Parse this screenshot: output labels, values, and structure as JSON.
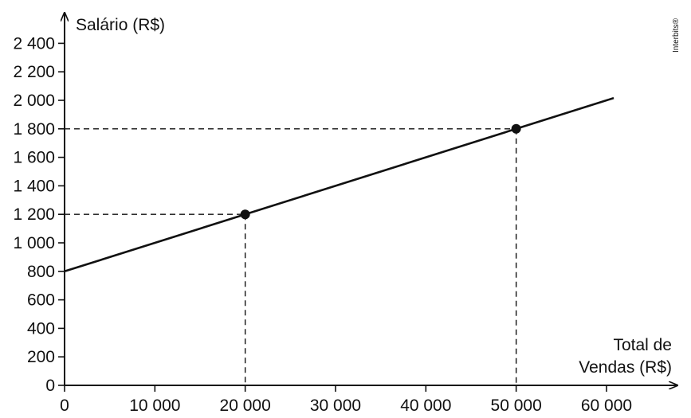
{
  "chart_data": {
    "type": "line",
    "ylabel": "Salário (R$)",
    "xlabel_lines": [
      "Total de",
      "Vendas (R$)"
    ],
    "credit": "Interbits®",
    "x_ticks": [
      {
        "value": 0,
        "label": "0"
      },
      {
        "value": 10000,
        "label": "10 000"
      },
      {
        "value": 20000,
        "label": "20 000"
      },
      {
        "value": 30000,
        "label": "30 000"
      },
      {
        "value": 40000,
        "label": "40 000"
      },
      {
        "value": 50000,
        "label": "50 000"
      },
      {
        "value": 60000,
        "label": "60 000"
      }
    ],
    "y_ticks": [
      {
        "value": 0,
        "label": "0"
      },
      {
        "value": 200,
        "label": "200"
      },
      {
        "value": 400,
        "label": "400"
      },
      {
        "value": 600,
        "label": "600"
      },
      {
        "value": 800,
        "label": "800"
      },
      {
        "value": 1000,
        "label": "1 000"
      },
      {
        "value": 1200,
        "label": "1 200"
      },
      {
        "value": 1400,
        "label": "1 400"
      },
      {
        "value": 1600,
        "label": "1 600"
      },
      {
        "value": 1800,
        "label": "1 800"
      },
      {
        "value": 2000,
        "label": "2 000"
      },
      {
        "value": 2200,
        "label": "2 200"
      },
      {
        "value": 2400,
        "label": "2 400"
      }
    ],
    "xlim": [
      0,
      68000
    ],
    "ylim": [
      0,
      2600
    ],
    "line": {
      "x": [
        0,
        60800
      ],
      "y": [
        800,
        2016
      ]
    },
    "points": [
      {
        "x": 20000,
        "y": 1200
      },
      {
        "x": 50000,
        "y": 1800
      }
    ],
    "grid": false
  }
}
